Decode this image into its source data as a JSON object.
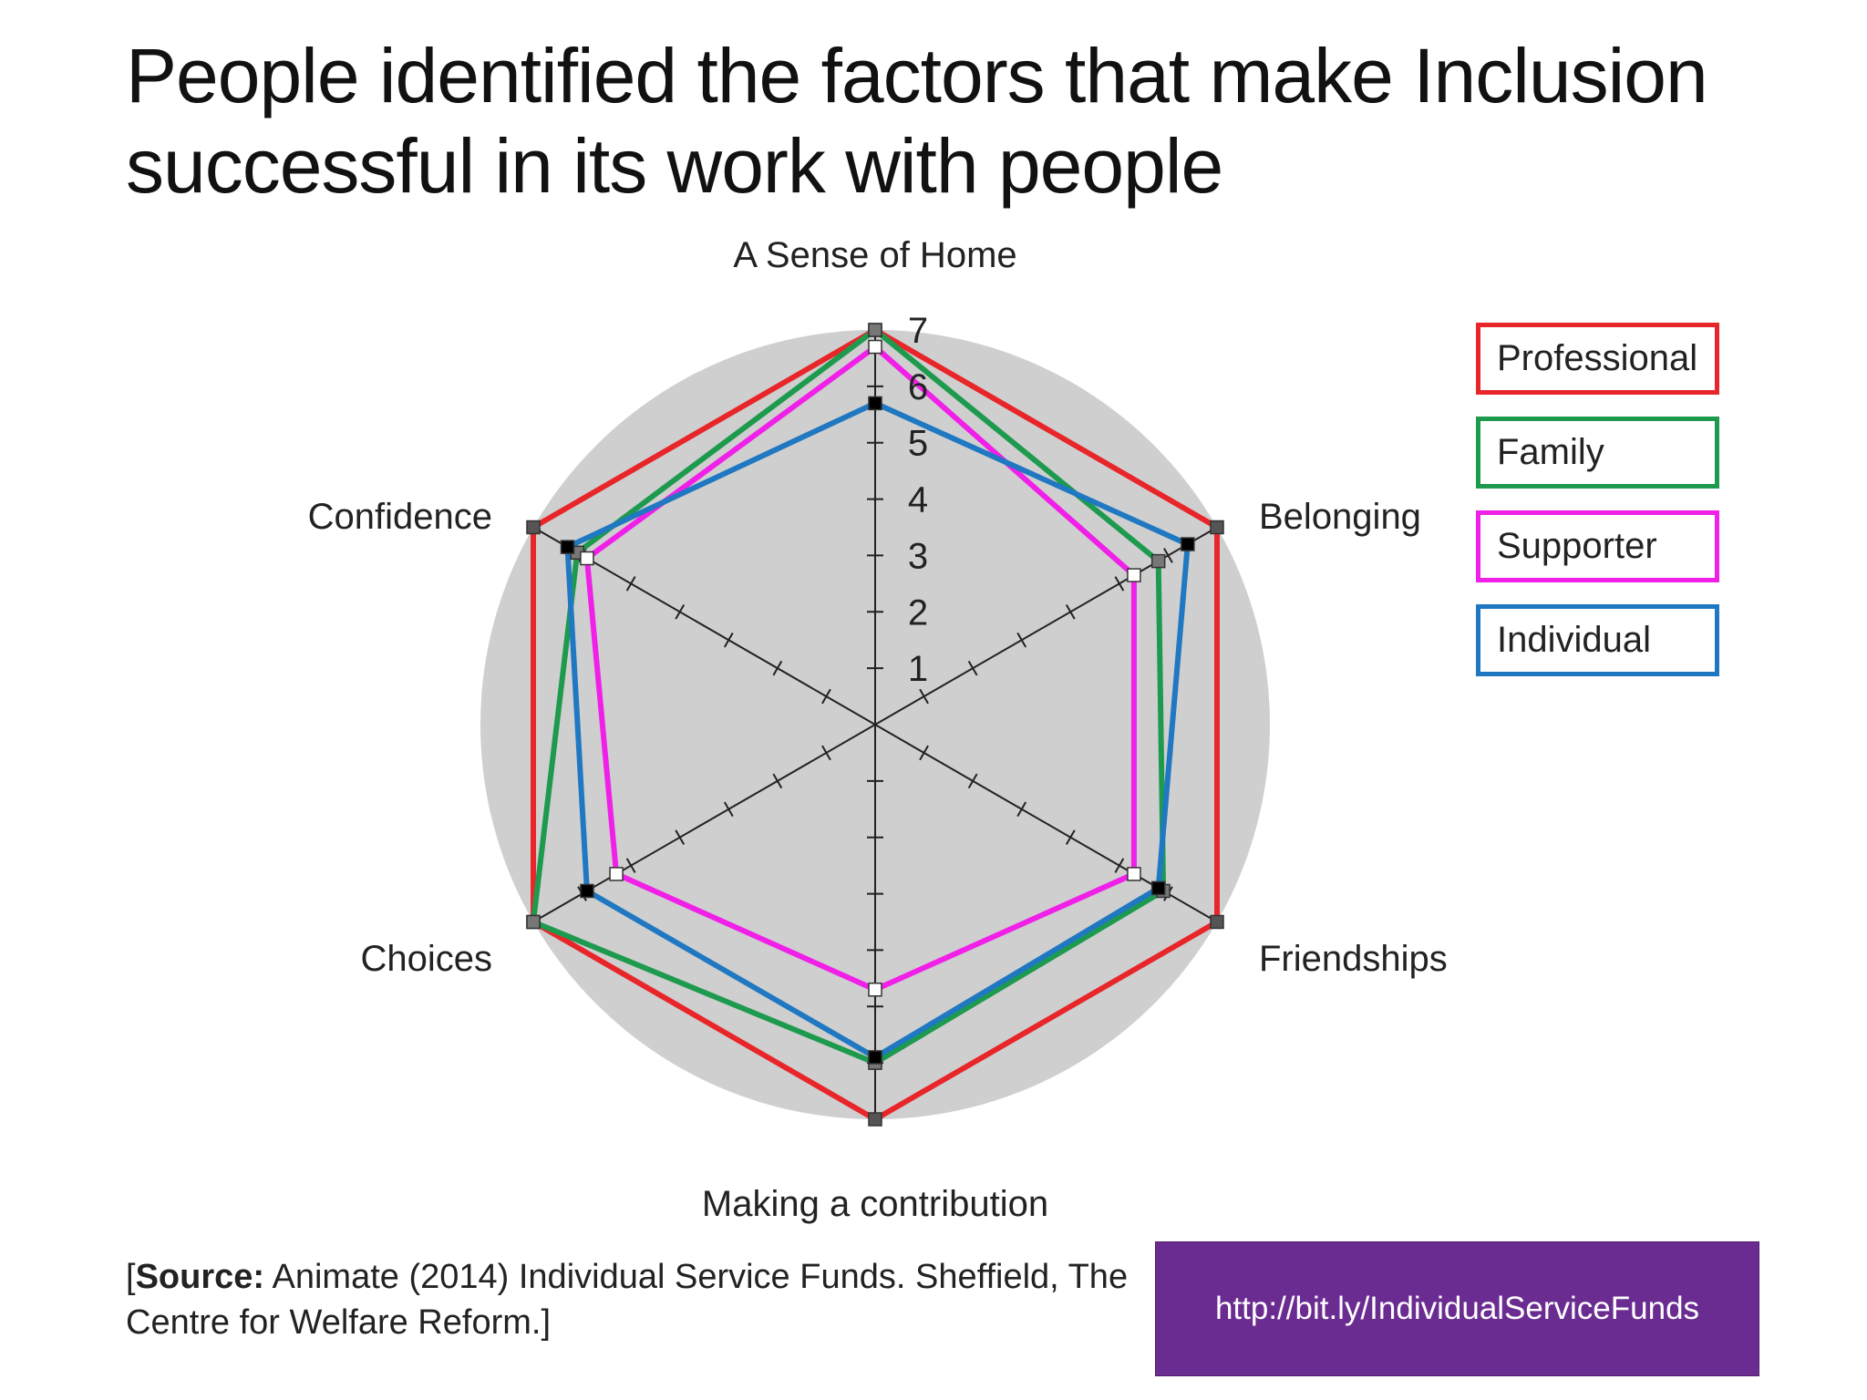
{
  "title": "People identified the factors that make Inclusion successful in its work with people",
  "source": {
    "prefix": "[",
    "bold": "Source:",
    "text": " Animate (2014) Individual Service Funds. Sheffield, The Centre for Welfare Reform.]"
  },
  "link": "http://bit.ly/IndividualServiceFunds",
  "colors": {
    "background_disc": "#cfcfcf",
    "axis": "#222222",
    "link_box": "#6b2c91"
  },
  "chart_data": {
    "type": "radar",
    "axes": [
      "A Sense of Home",
      "Belonging",
      "Friendships",
      "Making a contribution",
      "Choices",
      "Confidence"
    ],
    "scale_labels": [
      "1",
      "2",
      "3",
      "4",
      "5",
      "6",
      "7"
    ],
    "range": [
      0,
      7
    ],
    "legend_position": "right",
    "series": [
      {
        "name": "Professional",
        "color": "#e8262a",
        "marker": "#555555",
        "values": [
          7,
          7,
          7,
          7,
          7,
          7
        ]
      },
      {
        "name": "Family",
        "color": "#1e9a4e",
        "marker": "#777777",
        "values": [
          7,
          5.8,
          5.9,
          6.0,
          7,
          6.1
        ]
      },
      {
        "name": "Supporter",
        "color": "#f020e8",
        "marker": "#ffffff",
        "values": [
          6.7,
          5.3,
          5.3,
          4.7,
          5.3,
          5.9
        ]
      },
      {
        "name": "Individual",
        "color": "#1f78c1",
        "marker": "#000000",
        "values": [
          5.7,
          6.4,
          5.8,
          5.9,
          5.9,
          6.3
        ]
      }
    ]
  }
}
